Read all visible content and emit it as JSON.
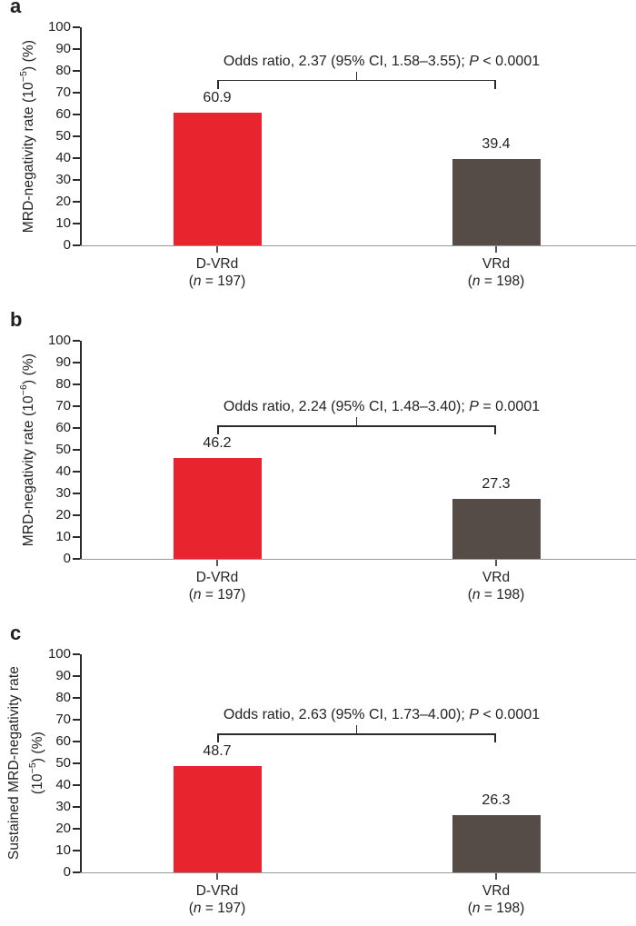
{
  "colors": {
    "dvrd_bar": "#e8242f",
    "vrd_bar": "#554c48",
    "axis": "#2e2a2b",
    "baseline": "#97999b",
    "text": "#231f20"
  },
  "chart_data": [
    {
      "type": "bar",
      "panel_letter": "a",
      "ylabel": "MRD-negativity rate (10^-5) (%)",
      "ylabel_lines": [
        [
          {
            "t": "MRD-negativity rate (10"
          },
          {
            "sup": "−5"
          },
          {
            "t": ") (%)"
          }
        ]
      ],
      "ylim": [
        0,
        100
      ],
      "ytick_step": 10,
      "grid": false,
      "categories": [
        {
          "name": "D-VRd",
          "n_prefix": "(",
          "n_var": "n",
          "n_rest": " = 197)"
        },
        {
          "name": "VRd",
          "n_prefix": "(",
          "n_var": "n",
          "n_rest": " = 198)"
        }
      ],
      "values": [
        60.9,
        39.4
      ],
      "value_labels": [
        "60.9",
        "39.4"
      ],
      "bar_colors": [
        "#e8242f",
        "#554c48"
      ],
      "annotation": {
        "prefix": "Odds ratio, 2.37 (95% CI, 1.58–3.55); ",
        "p": "P",
        "tail": " < 0.0001"
      }
    },
    {
      "type": "bar",
      "panel_letter": "b",
      "ylabel": "MRD-negativity rate (10^-6) (%)",
      "ylabel_lines": [
        [
          {
            "t": "MRD-negativity rate (10"
          },
          {
            "sup": "−6"
          },
          {
            "t": ") (%)"
          }
        ]
      ],
      "ylim": [
        0,
        100
      ],
      "ytick_step": 10,
      "grid": false,
      "categories": [
        {
          "name": "D-VRd",
          "n_prefix": "(",
          "n_var": "n",
          "n_rest": " = 197)"
        },
        {
          "name": "VRd",
          "n_prefix": "(",
          "n_var": "n",
          "n_rest": " = 198)"
        }
      ],
      "values": [
        46.2,
        27.3
      ],
      "value_labels": [
        "46.2",
        "27.3"
      ],
      "bar_colors": [
        "#e8242f",
        "#554c48"
      ],
      "annotation": {
        "prefix": "Odds ratio, 2.24 (95% CI, 1.48–3.40); ",
        "p": "P",
        "tail": " = 0.0001"
      }
    },
    {
      "type": "bar",
      "panel_letter": "c",
      "ylabel": "Sustained MRD-negativity rate (10^-5) (%)",
      "ylabel_lines": [
        [
          {
            "t": "Sustained MRD-negativity rate"
          }
        ],
        [
          {
            "t": "(10"
          },
          {
            "sup": "−5"
          },
          {
            "t": ") (%)"
          }
        ]
      ],
      "ylim": [
        0,
        100
      ],
      "ytick_step": 10,
      "grid": false,
      "categories": [
        {
          "name": "D-VRd",
          "n_prefix": "(",
          "n_var": "n",
          "n_rest": " = 197)"
        },
        {
          "name": "VRd",
          "n_prefix": "(",
          "n_var": "n",
          "n_rest": " = 198)"
        }
      ],
      "values": [
        48.7,
        26.3
      ],
      "value_labels": [
        "48.7",
        "26.3"
      ],
      "bar_colors": [
        "#e8242f",
        "#554c48"
      ],
      "annotation": {
        "prefix": "Odds ratio, 2.63 (95% CI, 1.73–4.00); ",
        "p": "P",
        "tail": " < 0.0001"
      }
    }
  ]
}
